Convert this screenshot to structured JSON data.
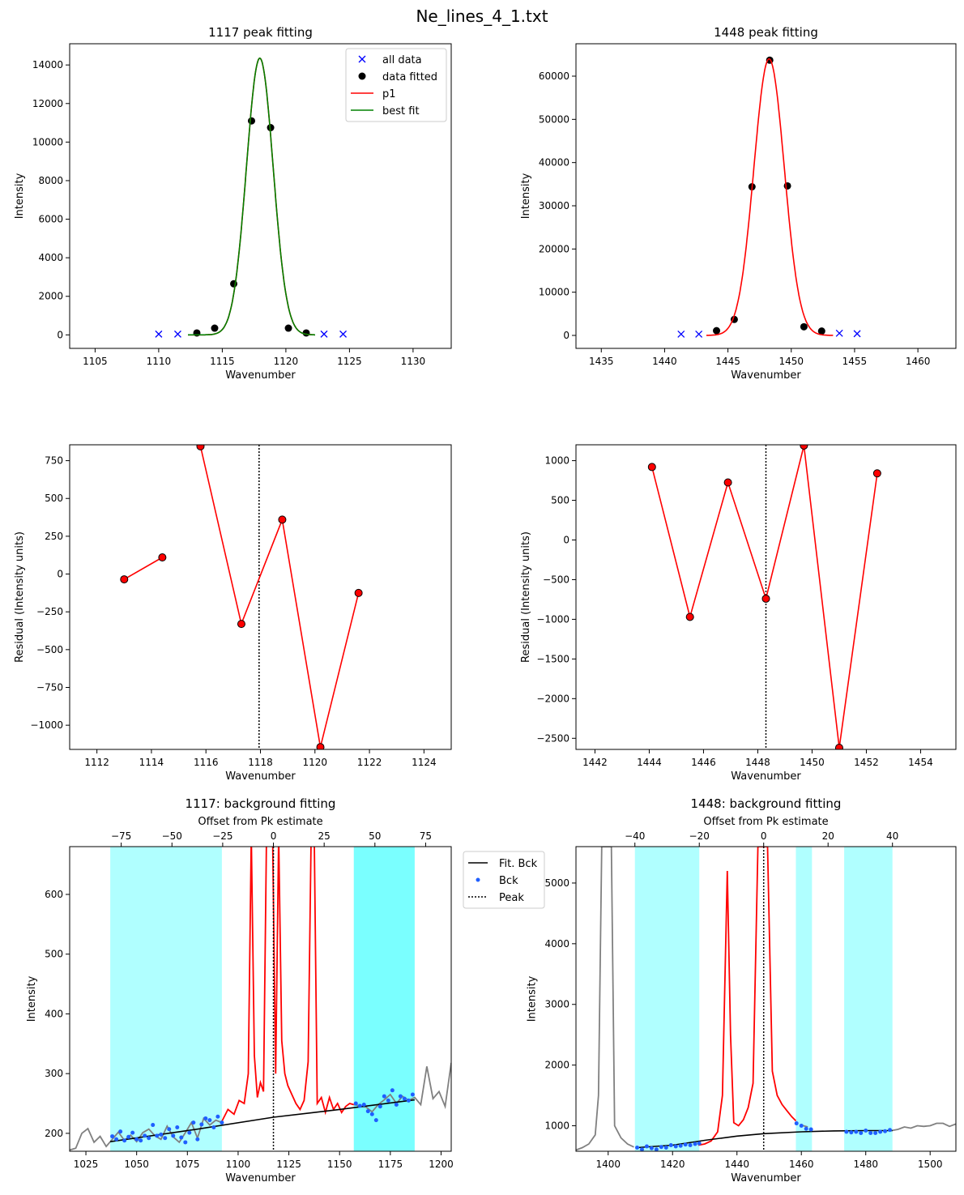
{
  "figure": {
    "title": "Ne_lines_4_1.txt"
  },
  "chart_data": [
    {
      "type": "scatter",
      "title": "1117 peak fitting",
      "xlabel": "Wavenumber",
      "ylabel": "Intensity",
      "xlim": [
        1103,
        1133
      ],
      "ylim": [
        -700,
        15100
      ],
      "xticks": [
        1105,
        1110,
        1115,
        1120,
        1125,
        1130
      ],
      "yticks": [
        0,
        2000,
        4000,
        6000,
        8000,
        10000,
        12000,
        14000
      ],
      "legend": {
        "placement": "upper right",
        "entries": [
          "all data",
          "data fitted",
          "p1",
          "best fit"
        ]
      },
      "colors": {
        "all_data": "#0000ff",
        "fitted": "#000000",
        "p1": "#ff0000",
        "best_fit": "#008000"
      },
      "series": [
        {
          "name": "all data",
          "marker": "x",
          "x": [
            1110.0,
            1111.5,
            1123.0,
            1124.5
          ],
          "y": [
            40,
            40,
            40,
            40
          ]
        },
        {
          "name": "data fitted",
          "marker": "o",
          "x": [
            1113.0,
            1114.4,
            1115.9,
            1117.3,
            1118.8,
            1120.2,
            1121.6
          ],
          "y": [
            100,
            350,
            2650,
            11100,
            10750,
            350,
            100
          ]
        },
        {
          "name": "p1",
          "line": "gaussian",
          "center": 1117.95,
          "amplitude": 14350,
          "sigma": 1.05,
          "x_range": [
            1112.3,
            1122.3
          ]
        },
        {
          "name": "best fit",
          "line": "gaussian",
          "center": 1117.95,
          "amplitude": 14350,
          "sigma": 1.05,
          "x_range": [
            1112.3,
            1122.3
          ]
        }
      ]
    },
    {
      "type": "scatter",
      "title": "1448 peak fitting",
      "xlabel": "Wavenumber",
      "ylabel": "Intensity",
      "xlim": [
        1433,
        1463
      ],
      "ylim": [
        -3000,
        67500
      ],
      "xticks": [
        1435,
        1440,
        1445,
        1450,
        1455,
        1460
      ],
      "yticks": [
        0,
        10000,
        20000,
        30000,
        40000,
        50000,
        60000
      ],
      "colors": {
        "all_data": "#0000ff",
        "fitted": "#000000",
        "p1": "#ff0000"
      },
      "series": [
        {
          "name": "all data",
          "marker": "x",
          "x": [
            1441.3,
            1442.7,
            1453.8,
            1455.2
          ],
          "y": [
            300,
            300,
            500,
            400
          ]
        },
        {
          "name": "data fitted",
          "marker": "o",
          "x": [
            1444.1,
            1445.5,
            1446.9,
            1448.3,
            1449.7,
            1451.0,
            1452.4
          ],
          "y": [
            1100,
            3700,
            34400,
            63700,
            34600,
            2000,
            1000
          ]
        },
        {
          "name": "p1",
          "line": "gaussian",
          "center": 1448.25,
          "amplitude": 64000,
          "sigma": 1.2,
          "x_range": [
            1443.3,
            1453.3
          ]
        }
      ]
    },
    {
      "type": "line",
      "xlabel": "Wavenumber",
      "ylabel": "Residual (Intensity units)",
      "xlim": [
        1111,
        1125
      ],
      "ylim": [
        -1160,
        855
      ],
      "xticks": [
        1112,
        1114,
        1116,
        1118,
        1120,
        1122,
        1124
      ],
      "yticks": [
        750,
        500,
        250,
        0,
        -250,
        -500,
        -750,
        -1000
      ],
      "ytick_labels": [
        "750",
        "500",
        "250",
        "0",
        "−250",
        "−500",
        "−750",
        "−1000"
      ],
      "peak_line": 1117.95,
      "colors": {
        "line": "#ff0000"
      },
      "series": [
        {
          "x": [
            1113.0,
            1114.4
          ],
          "y": [
            -35,
            110
          ]
        },
        {
          "x": [
            1115.8,
            1117.3,
            1118.8,
            1120.2,
            1121.6
          ],
          "y": [
            845,
            -330,
            360,
            -1145,
            -125
          ]
        }
      ]
    },
    {
      "type": "line",
      "xlabel": "Wavenumber",
      "ylabel": "Residual (Intensity units)",
      "xlim": [
        1441.3,
        1455.3
      ],
      "ylim": [
        -2640,
        1200
      ],
      "xticks": [
        1442,
        1444,
        1446,
        1448,
        1450,
        1452,
        1454
      ],
      "yticks": [
        1000,
        500,
        0,
        -500,
        -1000,
        -1500,
        -2000,
        -2500
      ],
      "ytick_labels": [
        "1000",
        "500",
        "0",
        "−500",
        "−1000",
        "−1500",
        "−2000",
        "−2500"
      ],
      "peak_line": 1448.3,
      "colors": {
        "line": "#ff0000"
      },
      "series": [
        {
          "x": [
            1444.1,
            1445.5,
            1446.9,
            1448.3,
            1449.7,
            1451.0,
            1452.4
          ],
          "y": [
            920,
            -970,
            725,
            -740,
            1190,
            -2620,
            840
          ]
        }
      ]
    },
    {
      "type": "line",
      "title": "1117: background fitting",
      "xlabel": "Wavenumber",
      "ylabel": "Intensity",
      "top_xlabel": "Offset from Pk estimate",
      "xlim": [
        1017,
        1205
      ],
      "ylim": [
        170,
        680
      ],
      "xticks": [
        1025,
        1050,
        1075,
        1100,
        1125,
        1150,
        1175,
        1200
      ],
      "yticks": [
        200,
        300,
        400,
        500,
        600
      ],
      "top_xticks": [
        -75,
        -50,
        -25,
        0,
        25,
        50,
        75
      ],
      "top_xtick_labels": [
        "−75",
        "−50",
        "−25",
        "0",
        "25",
        "50",
        "75"
      ],
      "peak_estimate": 1117.4,
      "peak_line": 1117.4,
      "shaded_regions": [
        [
          1037,
          1092
        ],
        [
          1157,
          1187
        ]
      ],
      "colors": {
        "raw": "#808080",
        "peak": "#ff0000",
        "background_points": "#1f5fff",
        "fit": "#000000",
        "region_light": "#b0ffff",
        "region_dark": "#7affff"
      },
      "legend": {
        "placement": "outside right",
        "entries": [
          "Fit. Bck",
          "Bck",
          "Peak"
        ]
      },
      "raw_x": [
        1017,
        1020,
        1023,
        1026,
        1029,
        1032,
        1035,
        1038,
        1041,
        1044,
        1047,
        1050,
        1053,
        1056,
        1059,
        1062,
        1065,
        1068,
        1071,
        1074,
        1077,
        1080,
        1083,
        1086,
        1089,
        1092,
        1157,
        1160,
        1163,
        1166,
        1169,
        1172,
        1175,
        1178,
        1181,
        1184,
        1187,
        1190,
        1193,
        1196,
        1199,
        1202,
        1205
      ],
      "raw_y": [
        172,
        175,
        200,
        208,
        185,
        195,
        178,
        190,
        202,
        188,
        197,
        186,
        201,
        207,
        196,
        190,
        212,
        194,
        185,
        201,
        218,
        192,
        225,
        214,
        222,
        218,
        248,
        246,
        244,
        236,
        248,
        256,
        265,
        250,
        262,
        255,
        260,
        248,
        312,
        258,
        270,
        245,
        318
      ],
      "peak_x": [
        1092,
        1095,
        1098,
        1100.5,
        1103,
        1105,
        1106.5,
        1108,
        1109.5,
        1111,
        1112.5,
        1114,
        1115.5,
        1117,
        1118.5,
        1120,
        1121.5,
        1123,
        1124.5,
        1126.5,
        1128.5,
        1130.5,
        1132.5,
        1134.5,
        1136,
        1137.5,
        1139,
        1141,
        1143,
        1145,
        1147,
        1149,
        1151,
        1153,
        1155,
        1157
      ],
      "peak_y": [
        220,
        240,
        232,
        255,
        250,
        300,
        700,
        330,
        260,
        285,
        270,
        700,
        700,
        700,
        300,
        700,
        355,
        300,
        280,
        265,
        250,
        240,
        255,
        320,
        700,
        700,
        250,
        260,
        235,
        260,
        240,
        250,
        235,
        245,
        250,
        248
      ],
      "bck_x": [
        1038,
        1040,
        1042,
        1044,
        1046,
        1048,
        1050,
        1052,
        1054,
        1056,
        1058,
        1060,
        1062,
        1064,
        1066,
        1068,
        1070,
        1072,
        1074,
        1076,
        1078,
        1080,
        1082,
        1084,
        1086,
        1088,
        1090,
        1092,
        1158,
        1160,
        1162,
        1164,
        1166,
        1168,
        1170,
        1172,
        1174,
        1176,
        1178,
        1180,
        1182,
        1184,
        1186
      ],
      "bck_y": [
        195,
        190,
        203,
        188,
        194,
        201,
        190,
        188,
        196,
        192,
        214,
        196,
        198,
        192,
        207,
        196,
        210,
        193,
        185,
        201,
        218,
        190,
        215,
        225,
        222,
        210,
        228,
        218,
        250,
        246,
        248,
        237,
        232,
        222,
        245,
        262,
        255,
        272,
        248,
        262,
        258,
        255,
        265
      ],
      "fit_curve": {
        "x": [
          1037,
          1080,
          1117.4,
          1150,
          1187
        ],
        "y": [
          186,
          207,
          227,
          240,
          256
        ]
      }
    },
    {
      "type": "line",
      "title": "1448: background fitting",
      "xlabel": "Wavenumber",
      "ylabel": "Intensity",
      "top_xlabel": "Offset from Pk estimate",
      "xlim": [
        1390,
        1508
      ],
      "ylim": [
        580,
        5600
      ],
      "xticks": [
        1400,
        1420,
        1440,
        1460,
        1480,
        1500
      ],
      "yticks": [
        1000,
        2000,
        3000,
        4000,
        5000
      ],
      "top_xticks": [
        -40,
        -20,
        0,
        20,
        40
      ],
      "top_xtick_labels": [
        "−40",
        "−20",
        "0",
        "20",
        "40"
      ],
      "peak_estimate": 1448.3,
      "peak_line": 1448.3,
      "shaded_regions": [
        [
          1408.3,
          1428.3
        ],
        [
          1458.3,
          1463.3
        ],
        [
          1473.3,
          1488.3
        ]
      ],
      "colors": {
        "raw": "#808080",
        "peak": "#ff0000",
        "background_points": "#1f5fff",
        "fit": "#000000",
        "region_light": "#b0ffff"
      },
      "raw_x": [
        1390,
        1392,
        1394,
        1396,
        1397,
        1398,
        1399,
        1400,
        1401,
        1402,
        1404,
        1406,
        1408,
        1460,
        1462,
        1488,
        1490,
        1492,
        1494,
        1496,
        1498,
        1500,
        1502,
        1504,
        1506,
        1508
      ],
      "raw_y": [
        600,
        640,
        700,
        850,
        1500,
        5600,
        5600,
        5600,
        5600,
        1000,
        800,
        700,
        650,
        1010,
        980,
        920,
        940,
        980,
        960,
        1000,
        990,
        1000,
        1040,
        1040,
        990,
        1030
      ],
      "peak_x": [
        1428,
        1430,
        1432,
        1434,
        1435.5,
        1437,
        1438,
        1439,
        1440.5,
        1442,
        1443.5,
        1445,
        1446.5,
        1448,
        1449.5,
        1451,
        1452.5,
        1454,
        1455.5,
        1457,
        1458.3
      ],
      "peak_y": [
        680,
        700,
        750,
        900,
        1500,
        5200,
        2500,
        1050,
        1000,
        1100,
        1300,
        1700,
        5600,
        5600,
        5600,
        1900,
        1500,
        1350,
        1250,
        1150,
        1080
      ],
      "bck_x": [
        1409,
        1410.5,
        1412,
        1413.5,
        1415,
        1416.5,
        1418,
        1419.5,
        1421,
        1422.5,
        1424,
        1425.5,
        1427,
        1428.3,
        1458.5,
        1460,
        1461.5,
        1463,
        1474,
        1475.5,
        1477,
        1478.5,
        1480,
        1481.5,
        1483,
        1484.5,
        1486,
        1487.5
      ],
      "bck_y": [
        640,
        610,
        660,
        630,
        610,
        650,
        640,
        680,
        660,
        670,
        690,
        680,
        700,
        710,
        1040,
        1000,
        950,
        940,
        900,
        890,
        900,
        880,
        920,
        880,
        880,
        900,
        910,
        930
      ],
      "fit_curve": {
        "x": [
          1409,
          1420,
          1430,
          1440,
          1448.3,
          1460,
          1470,
          1480,
          1488.3
        ],
        "y": [
          640,
          680,
          760,
          830,
          870,
          900,
          915,
          920,
          920
        ]
      }
    }
  ]
}
